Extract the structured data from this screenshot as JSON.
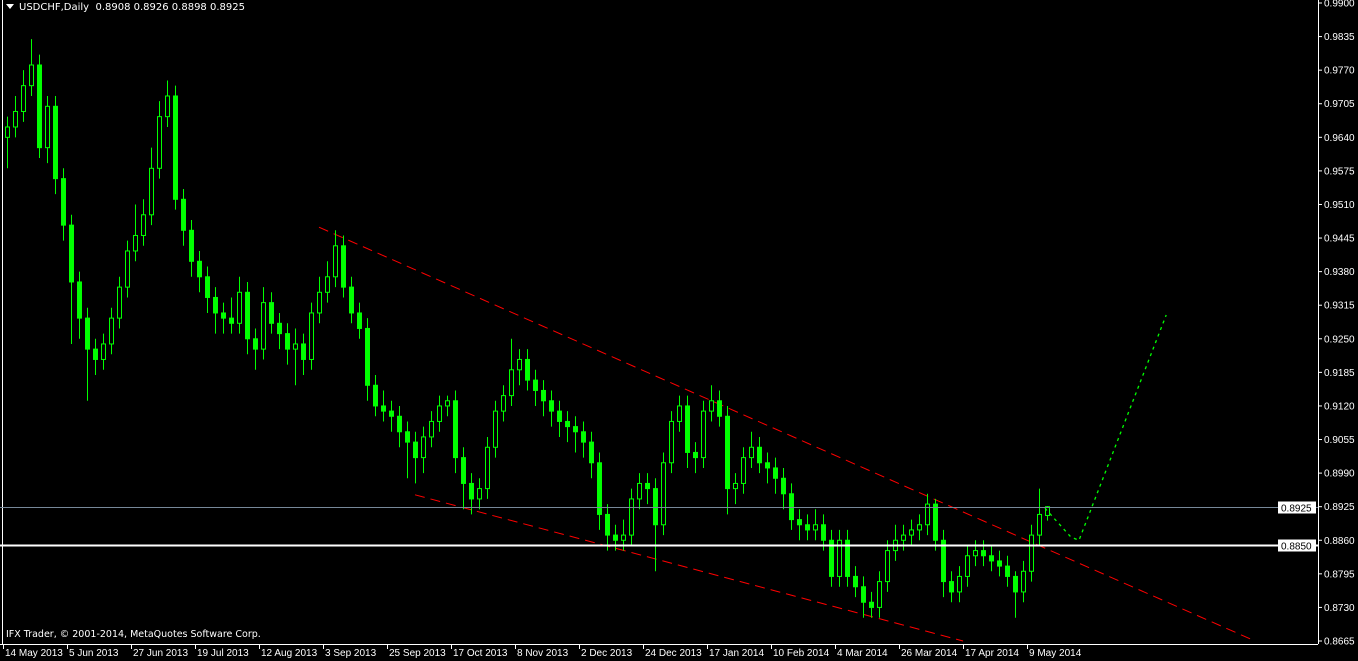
{
  "header": {
    "symbol_timeframe": "USDCHF,Daily",
    "ohlc_readout": "0.8908 0.8926 0.8898 0.8925"
  },
  "footer": {
    "copyright": "IFX Trader, © 2001-2014, MetaQuotes Software Corp."
  },
  "colors": {
    "background": "#000000",
    "candle": "#00ff00",
    "grid_axis": "#ffffff",
    "trendline": "#ff0000",
    "projection": "#00ff00",
    "bid_line": "#778899",
    "support_line": "#ffffff"
  },
  "chart_data": {
    "type": "candlestick",
    "ylim": [
      0.8665,
      0.99
    ],
    "y_ticks": [
      "0.9900",
      "0.9835",
      "0.9770",
      "0.9705",
      "0.9640",
      "0.9575",
      "0.9510",
      "0.9445",
      "0.9380",
      "0.9315",
      "0.9250",
      "0.9185",
      "0.9120",
      "0.9055",
      "0.8990",
      "0.8925",
      "0.8860",
      "0.8795",
      "0.8730",
      "0.8665"
    ],
    "x_ticks": [
      "14 May 2013",
      "5 Jun 2013",
      "27 Jun 2013",
      "19 Jul 2013",
      "12 Aug 2013",
      "3 Sep 2013",
      "25 Sep 2013",
      "17 Oct 2013",
      "8 Nov 2013",
      "2 Dec 2013",
      "24 Dec 2013",
      "17 Jan 2014",
      "10 Feb 2014",
      "4 Mar 2014",
      "26 Mar 2014",
      "17 Apr 2014",
      "9 May 2014"
    ],
    "candles_ohlc": [
      [
        0.964,
        0.968,
        0.958,
        0.966
      ],
      [
        0.966,
        0.972,
        0.964,
        0.969
      ],
      [
        0.969,
        0.977,
        0.967,
        0.974
      ],
      [
        0.974,
        0.983,
        0.972,
        0.978
      ],
      [
        0.978,
        0.98,
        0.96,
        0.962
      ],
      [
        0.962,
        0.972,
        0.959,
        0.97
      ],
      [
        0.97,
        0.972,
        0.953,
        0.956
      ],
      [
        0.956,
        0.958,
        0.944,
        0.947
      ],
      [
        0.947,
        0.949,
        0.924,
        0.936
      ],
      [
        0.936,
        0.938,
        0.925,
        0.929
      ],
      [
        0.929,
        0.931,
        0.913,
        0.923
      ],
      [
        0.923,
        0.925,
        0.918,
        0.921
      ],
      [
        0.921,
        0.926,
        0.919,
        0.924
      ],
      [
        0.924,
        0.931,
        0.922,
        0.929
      ],
      [
        0.929,
        0.937,
        0.927,
        0.935
      ],
      [
        0.935,
        0.944,
        0.933,
        0.942
      ],
      [
        0.942,
        0.951,
        0.94,
        0.945
      ],
      [
        0.945,
        0.952,
        0.943,
        0.949
      ],
      [
        0.949,
        0.962,
        0.947,
        0.958
      ],
      [
        0.958,
        0.971,
        0.956,
        0.968
      ],
      [
        0.968,
        0.975,
        0.966,
        0.972
      ],
      [
        0.972,
        0.974,
        0.95,
        0.952
      ],
      [
        0.952,
        0.954,
        0.943,
        0.946
      ],
      [
        0.946,
        0.948,
        0.937,
        0.94
      ],
      [
        0.94,
        0.942,
        0.934,
        0.937
      ],
      [
        0.937,
        0.939,
        0.93,
        0.933
      ],
      [
        0.933,
        0.935,
        0.926,
        0.93
      ],
      [
        0.93,
        0.932,
        0.926,
        0.929
      ],
      [
        0.929,
        0.933,
        0.926,
        0.928
      ],
      [
        0.928,
        0.937,
        0.926,
        0.934
      ],
      [
        0.934,
        0.936,
        0.922,
        0.925
      ],
      [
        0.925,
        0.927,
        0.919,
        0.923
      ],
      [
        0.923,
        0.935,
        0.921,
        0.932
      ],
      [
        0.932,
        0.934,
        0.926,
        0.928
      ],
      [
        0.928,
        0.93,
        0.923,
        0.926
      ],
      [
        0.926,
        0.928,
        0.92,
        0.923
      ],
      [
        0.923,
        0.927,
        0.916,
        0.924
      ],
      [
        0.924,
        0.926,
        0.918,
        0.921
      ],
      [
        0.921,
        0.932,
        0.919,
        0.93
      ],
      [
        0.93,
        0.937,
        0.928,
        0.934
      ],
      [
        0.934,
        0.94,
        0.932,
        0.937
      ],
      [
        0.937,
        0.946,
        0.935,
        0.943
      ],
      [
        0.943,
        0.945,
        0.933,
        0.935
      ],
      [
        0.935,
        0.937,
        0.928,
        0.93
      ],
      [
        0.93,
        0.932,
        0.925,
        0.927
      ],
      [
        0.927,
        0.929,
        0.913,
        0.916
      ],
      [
        0.916,
        0.918,
        0.91,
        0.912
      ],
      [
        0.912,
        0.915,
        0.909,
        0.911
      ],
      [
        0.911,
        0.913,
        0.907,
        0.91
      ],
      [
        0.91,
        0.912,
        0.904,
        0.907
      ],
      [
        0.907,
        0.909,
        0.898,
        0.905
      ],
      [
        0.905,
        0.907,
        0.897,
        0.902
      ],
      [
        0.902,
        0.908,
        0.899,
        0.906
      ],
      [
        0.906,
        0.911,
        0.904,
        0.909
      ],
      [
        0.909,
        0.914,
        0.907,
        0.912
      ],
      [
        0.912,
        0.914,
        0.91,
        0.913
      ],
      [
        0.913,
        0.915,
        0.899,
        0.902
      ],
      [
        0.902,
        0.904,
        0.892,
        0.897
      ],
      [
        0.897,
        0.899,
        0.891,
        0.894
      ],
      [
        0.894,
        0.898,
        0.892,
        0.896
      ],
      [
        0.896,
        0.906,
        0.894,
        0.904
      ],
      [
        0.904,
        0.913,
        0.902,
        0.911
      ],
      [
        0.911,
        0.916,
        0.909,
        0.914
      ],
      [
        0.914,
        0.925,
        0.912,
        0.919
      ],
      [
        0.919,
        0.923,
        0.916,
        0.921
      ],
      [
        0.921,
        0.923,
        0.915,
        0.917
      ],
      [
        0.917,
        0.919,
        0.912,
        0.915
      ],
      [
        0.915,
        0.917,
        0.91,
        0.913
      ],
      [
        0.913,
        0.915,
        0.908,
        0.911
      ],
      [
        0.911,
        0.913,
        0.906,
        0.909
      ],
      [
        0.909,
        0.911,
        0.905,
        0.908
      ],
      [
        0.908,
        0.91,
        0.903,
        0.907
      ],
      [
        0.907,
        0.909,
        0.902,
        0.905
      ],
      [
        0.905,
        0.907,
        0.898,
        0.901
      ],
      [
        0.901,
        0.903,
        0.888,
        0.891
      ],
      [
        0.891,
        0.893,
        0.884,
        0.887
      ],
      [
        0.887,
        0.889,
        0.884,
        0.886
      ],
      [
        0.886,
        0.89,
        0.884,
        0.887
      ],
      [
        0.887,
        0.896,
        0.885,
        0.894
      ],
      [
        0.894,
        0.899,
        0.892,
        0.897
      ],
      [
        0.897,
        0.899,
        0.893,
        0.896
      ],
      [
        0.896,
        0.898,
        0.88,
        0.889
      ],
      [
        0.889,
        0.903,
        0.887,
        0.901
      ],
      [
        0.901,
        0.911,
        0.899,
        0.909
      ],
      [
        0.909,
        0.914,
        0.907,
        0.912
      ],
      [
        0.912,
        0.914,
        0.9,
        0.903
      ],
      [
        0.903,
        0.905,
        0.899,
        0.902
      ],
      [
        0.902,
        0.913,
        0.9,
        0.911
      ],
      [
        0.911,
        0.916,
        0.909,
        0.913
      ],
      [
        0.913,
        0.915,
        0.908,
        0.91
      ],
      [
        0.91,
        0.912,
        0.891,
        0.896
      ],
      [
        0.896,
        0.899,
        0.893,
        0.897
      ],
      [
        0.897,
        0.904,
        0.895,
        0.902
      ],
      [
        0.902,
        0.907,
        0.9,
        0.904
      ],
      [
        0.904,
        0.906,
        0.899,
        0.901
      ],
      [
        0.901,
        0.903,
        0.897,
        0.9
      ],
      [
        0.9,
        0.902,
        0.895,
        0.898
      ],
      [
        0.898,
        0.9,
        0.892,
        0.895
      ],
      [
        0.895,
        0.897,
        0.888,
        0.89
      ],
      [
        0.89,
        0.892,
        0.886,
        0.889
      ],
      [
        0.889,
        0.891,
        0.886,
        0.888
      ],
      [
        0.888,
        0.892,
        0.886,
        0.889
      ],
      [
        0.889,
        0.891,
        0.884,
        0.886
      ],
      [
        0.886,
        0.888,
        0.877,
        0.879
      ],
      [
        0.879,
        0.888,
        0.877,
        0.886
      ],
      [
        0.886,
        0.888,
        0.877,
        0.879
      ],
      [
        0.879,
        0.881,
        0.875,
        0.877
      ],
      [
        0.877,
        0.879,
        0.871,
        0.874
      ],
      [
        0.874,
        0.876,
        0.871,
        0.873
      ],
      [
        0.873,
        0.88,
        0.871,
        0.878
      ],
      [
        0.878,
        0.886,
        0.876,
        0.884
      ],
      [
        0.884,
        0.889,
        0.882,
        0.886
      ],
      [
        0.886,
        0.889,
        0.884,
        0.887
      ],
      [
        0.887,
        0.89,
        0.885,
        0.888
      ],
      [
        0.888,
        0.891,
        0.886,
        0.889
      ],
      [
        0.889,
        0.895,
        0.887,
        0.893
      ],
      [
        0.893,
        0.894,
        0.884,
        0.886
      ],
      [
        0.886,
        0.888,
        0.875,
        0.878
      ],
      [
        0.878,
        0.88,
        0.874,
        0.876
      ],
      [
        0.876,
        0.881,
        0.874,
        0.879
      ],
      [
        0.879,
        0.885,
        0.877,
        0.883
      ],
      [
        0.883,
        0.886,
        0.881,
        0.884
      ],
      [
        0.884,
        0.886,
        0.881,
        0.883
      ],
      [
        0.883,
        0.885,
        0.88,
        0.882
      ],
      [
        0.882,
        0.884,
        0.879,
        0.881
      ],
      [
        0.881,
        0.883,
        0.877,
        0.879
      ],
      [
        0.879,
        0.88,
        0.871,
        0.876
      ],
      [
        0.876,
        0.882,
        0.874,
        0.88
      ],
      [
        0.88,
        0.889,
        0.878,
        0.887
      ],
      [
        0.887,
        0.896,
        0.885,
        0.891
      ],
      [
        0.8908,
        0.8926,
        0.8898,
        0.8925
      ]
    ],
    "horizontal_lines": [
      {
        "price": 0.8925,
        "label": "0.8925",
        "kind": "bid"
      },
      {
        "price": 0.885,
        "label": "0.8850",
        "kind": "support"
      }
    ],
    "trendlines_bar_index_price": [
      {
        "from": [
          39,
          0.9466
        ],
        "to": [
          156,
          0.8665
        ],
        "style": "dashed",
        "color": "#ff0000"
      },
      {
        "from": [
          51,
          0.8948
        ],
        "to": [
          119.5,
          0.8665
        ],
        "style": "dashed",
        "color": "#ff0000"
      }
    ],
    "projection_path_bar_index_price": [
      [
        129.75,
        0.8922
      ],
      [
        133,
        0.8866
      ],
      [
        134,
        0.886
      ],
      [
        144.9,
        0.9296
      ]
    ]
  }
}
